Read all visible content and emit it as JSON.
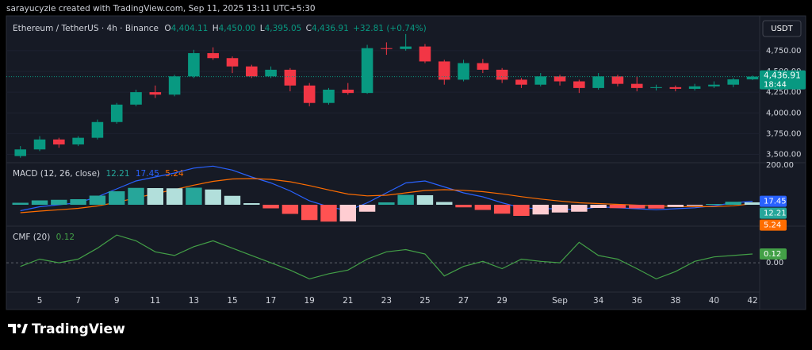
{
  "header": "sarayucyzie created with TradingView.com, Sep 11, 2025 13:11 UTC+5:30",
  "brand": "TradingView",
  "currency": "USDT",
  "chart_data": [
    {
      "type": "candlestick",
      "title": "Ethereum / TetherUS · 4h · Binance",
      "ohlc_legend": [
        {
          "key": "O",
          "value": 4404.11,
          "label": "4,404.11"
        },
        {
          "key": "H",
          "value": 4450,
          "label": "4,450.00"
        },
        {
          "key": "L",
          "value": 4395.05,
          "label": "4,395.05"
        },
        {
          "key": "C",
          "value": 4436.91,
          "label": "4,436.91"
        }
      ],
      "change": "+32.81 (+0.74%)",
      "last_price": {
        "value": 4436.91,
        "label": "4,436.91"
      },
      "countdown": "18:44",
      "up_color": "#089981",
      "down_color": "#f23645",
      "x": [
        4,
        5,
        6,
        7,
        8,
        9,
        10,
        11,
        12,
        13,
        14,
        15,
        16,
        17,
        18,
        19,
        20,
        21,
        22,
        23,
        24,
        25,
        26,
        27,
        28,
        29,
        30,
        31,
        32,
        33,
        34,
        35,
        36,
        37,
        38,
        39,
        40,
        41,
        42
      ],
      "open": [
        3480,
        3560,
        3680,
        3620,
        3700,
        3890,
        4100,
        4250,
        4220,
        4440,
        4720,
        4660,
        4560,
        4440,
        4520,
        4330,
        4120,
        4280,
        4240,
        4780,
        4770,
        4800,
        4620,
        4400,
        4600,
        4520,
        4400,
        4340,
        4440,
        4380,
        4300,
        4440,
        4350,
        4300,
        4310,
        4290,
        4320,
        4340,
        4404.11
      ],
      "high": [
        3600,
        3720,
        3700,
        3720,
        3920,
        4120,
        4280,
        4330,
        4460,
        4760,
        4790,
        4680,
        4580,
        4560,
        4540,
        4360,
        4300,
        4360,
        4820,
        4850,
        4950,
        4830,
        4640,
        4640,
        4650,
        4540,
        4420,
        4480,
        4460,
        4400,
        4480,
        4460,
        4440,
        4340,
        4330,
        4350,
        4380,
        4420,
        4450
      ],
      "low": [
        3460,
        3540,
        3580,
        3600,
        3680,
        3870,
        4080,
        4180,
        4200,
        4420,
        4640,
        4480,
        4420,
        4420,
        4260,
        4080,
        4100,
        4220,
        4230,
        4700,
        4750,
        4600,
        4340,
        4380,
        4480,
        4360,
        4300,
        4320,
        4330,
        4240,
        4280,
        4320,
        4260,
        4270,
        4260,
        4270,
        4300,
        4310,
        4395.05
      ],
      "close": [
        3560,
        3680,
        3620,
        3700,
        3890,
        4100,
        4250,
        4220,
        4440,
        4720,
        4660,
        4560,
        4440,
        4520,
        4330,
        4120,
        4280,
        4240,
        4780,
        4770,
        4800,
        4620,
        4400,
        4600,
        4520,
        4400,
        4340,
        4440,
        4380,
        4300,
        4440,
        4350,
        4300,
        4310,
        4290,
        4320,
        4340,
        4404.11,
        4436.91
      ],
      "xlim": [
        3.27,
        42.37
      ],
      "ylim": [
        3400,
        5150
      ],
      "yticks": [
        {
          "value": 3500,
          "label": "3,500.00"
        },
        {
          "value": 3750,
          "label": "3,750.00"
        },
        {
          "value": 4000,
          "label": "4,000.00"
        },
        {
          "value": 4250,
          "label": "4,250.00"
        },
        {
          "value": 4500,
          "label": "4,500.00"
        },
        {
          "value": 4750,
          "label": "4,750.00"
        }
      ],
      "grid": true
    },
    {
      "type": "line",
      "title": "MACD (12, 26, close)",
      "x": [
        4,
        5,
        6,
        7,
        8,
        9,
        10,
        11,
        12,
        13,
        14,
        15,
        16,
        17,
        18,
        19,
        20,
        21,
        22,
        23,
        24,
        25,
        26,
        27,
        28,
        29,
        30,
        31,
        32,
        33,
        34,
        35,
        36,
        37,
        38,
        39,
        40,
        41,
        42
      ],
      "series": [
        {
          "color": "#2962ff",
          "values": [
            -30,
            -10,
            0,
            10,
            40,
            80,
            120,
            140,
            160,
            185,
            195,
            175,
            140,
            110,
            70,
            20,
            -10,
            -30,
            10,
            60,
            110,
            120,
            90,
            60,
            40,
            10,
            -15,
            -20,
            -20,
            -25,
            -10,
            -15,
            -20,
            -25,
            -20,
            -15,
            -5,
            10,
            17.45
          ]
        },
        {
          "color": "#ff6d00",
          "values": [
            -40,
            -32,
            -25,
            -18,
            -6,
            12,
            35,
            56,
            77,
            99,
            118,
            130,
            132,
            128,
            116,
            97,
            75,
            54,
            45,
            48,
            60,
            72,
            76,
            73,
            66,
            55,
            41,
            29,
            19,
            10,
            6,
            2,
            -2,
            -6,
            -9,
            -10,
            -9,
            -5,
            5.24
          ]
        },
        {
          "type": "bar",
          "color": "#26a69a",
          "colors": [
            "#26a69a",
            "#b2dfdb",
            "#ff5252",
            "#ffcdd2"
          ],
          "values": [
            10,
            22,
            25,
            28,
            46,
            68,
            85,
            84,
            83,
            86,
            77,
            45,
            8,
            -18,
            -46,
            -77,
            -85,
            -84,
            -35,
            12,
            50,
            48,
            14,
            -13,
            -26,
            -45,
            -56,
            -49,
            -39,
            -35,
            -16,
            -17,
            -18,
            -19,
            -11,
            -5,
            4,
            15,
            12.21
          ]
        }
      ],
      "xlim": [
        3.27,
        42.37
      ],
      "ylim": [
        -108,
        212
      ],
      "yticks": [
        {
          "value": 200,
          "label": "200.00"
        }
      ],
      "grid": false
    },
    {
      "type": "line",
      "title": "CMF (20)",
      "x": [
        4,
        5,
        6,
        7,
        8,
        9,
        10,
        11,
        12,
        13,
        14,
        15,
        16,
        17,
        18,
        19,
        20,
        21,
        22,
        23,
        24,
        25,
        26,
        27,
        28,
        29,
        30,
        31,
        32,
        33,
        34,
        35,
        36,
        37,
        38,
        39,
        40,
        41,
        42
      ],
      "series": [
        {
          "color": "#43a047",
          "values": [
            -0.05,
            0.05,
            0,
            0.05,
            0.2,
            0.38,
            0.3,
            0.15,
            0.1,
            0.22,
            0.3,
            0.2,
            0.1,
            0,
            -0.1,
            -0.22,
            -0.15,
            -0.1,
            0.05,
            0.15,
            0.18,
            0.12,
            -0.18,
            -0.05,
            0.02,
            -0.08,
            0.05,
            0.02,
            0,
            0.28,
            0.1,
            0.05,
            -0.08,
            -0.22,
            -0.12,
            0.02,
            0.08,
            0.1,
            0.12
          ]
        }
      ],
      "xlim": [
        3.27,
        42.37
      ],
      "ylim": [
        -0.4,
        0.5
      ],
      "yticks": [
        {
          "value": 0,
          "label": "0.00"
        }
      ],
      "grid": true,
      "grid_style": "dashed",
      "xticks": [
        5,
        7,
        9,
        11,
        13,
        15,
        17,
        19,
        21,
        23,
        25,
        27,
        29,
        {
          "value": 32,
          "label": "Sep"
        },
        34,
        36,
        38,
        40,
        42
      ]
    }
  ]
}
